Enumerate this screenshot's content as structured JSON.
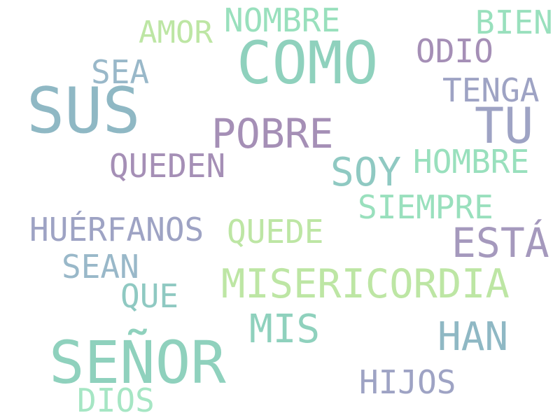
{
  "words": [
    {
      "text": "COMO",
      "color": "#8fd1bd"
    },
    {
      "text": "SUS",
      "color": "#8fb8c4"
    },
    {
      "text": "SEÑOR",
      "color": "#8fd1bd"
    },
    {
      "text": "TU",
      "color": "#9ea3c4"
    },
    {
      "text": "POBRE",
      "color": "#a58fb6"
    },
    {
      "text": "MISERICORDIA",
      "color": "#bde6a4"
    },
    {
      "text": "ESTÁ",
      "color": "#a599bd"
    },
    {
      "text": "HAN",
      "color": "#8fb8c4"
    },
    {
      "text": "MIS",
      "color": "#8fd1bd"
    },
    {
      "text": "SOY",
      "color": "#8fc9c2"
    },
    {
      "text": "NOMBRE",
      "color": "#99e0bd"
    },
    {
      "text": "AMOR",
      "color": "#bde6a4"
    },
    {
      "text": "BIEN",
      "color": "#99e0bd"
    },
    {
      "text": "ODIO",
      "color": "#a58fb6"
    },
    {
      "text": "SEA",
      "color": "#99b8c9"
    },
    {
      "text": "TENGA",
      "color": "#9ea3c4"
    },
    {
      "text": "QUEDEN",
      "color": "#a58fb6"
    },
    {
      "text": "HOMBRE",
      "color": "#99e0bd"
    },
    {
      "text": "SIEMPRE",
      "color": "#99e0bd"
    },
    {
      "text": "HUÉRFANOS",
      "color": "#9ea3c4"
    },
    {
      "text": "QUEDE",
      "color": "#bde6a4"
    },
    {
      "text": "SEAN",
      "color": "#99b8c9"
    },
    {
      "text": "QUE",
      "color": "#8fc9c2"
    },
    {
      "text": "HIJOS",
      "color": "#9ea3c4"
    },
    {
      "text": "DIOS",
      "color": "#a6e6c4"
    }
  ]
}
